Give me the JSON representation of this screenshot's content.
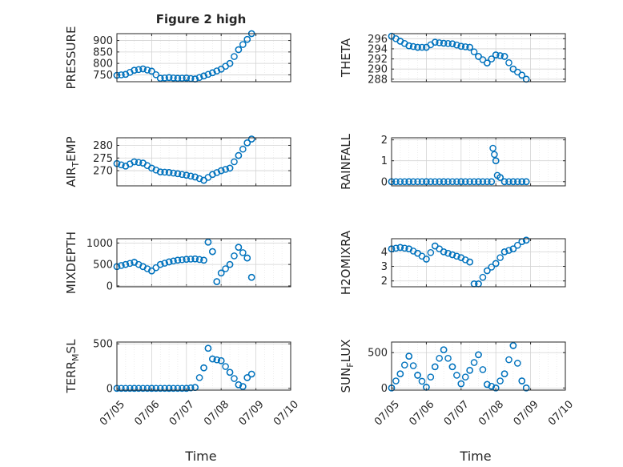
{
  "figure": {
    "title": "Figure 2 high",
    "xlabel": "Time"
  },
  "x_ticks": [
    "07/05",
    "07/06",
    "07/07",
    "07/08",
    "07/09",
    "07/10"
  ],
  "chart_data": [
    {
      "type": "scatter",
      "panel": "PRESSURE",
      "ylabel": "PRESSURE",
      "ylabel_sub": "",
      "ylim": [
        720,
        930
      ],
      "yticks": [
        750,
        800,
        850,
        900
      ],
      "grid": true,
      "title": "Figure 2 high",
      "x": [
        "07/05",
        "07/05 06:00",
        "07/05 12:00",
        "07/05 18:00",
        "07/06",
        "07/06 06:00",
        "07/06 12:00",
        "07/06 18:00",
        "07/07",
        "07/07 06:00",
        "07/07 12:00",
        "07/07 18:00",
        "07/08",
        "07/08 06:00",
        "07/08 12:00",
        "07/08 18:00",
        "07/08 21:00"
      ],
      "values": [
        748,
        752,
        770,
        776,
        766,
        735,
        738,
        735,
        736,
        732,
        745,
        759,
        775,
        800,
        860,
        905,
        930
      ]
    },
    {
      "type": "scatter",
      "panel": "THETA",
      "ylabel": "THETA",
      "ylabel_sub": "",
      "ylim": [
        287.5,
        297
      ],
      "yticks": [
        288,
        290,
        292,
        294,
        296
      ],
      "grid": true,
      "x": [
        "07/05",
        "07/05 06:00",
        "07/05 12:00",
        "07/05 18:00",
        "07/06",
        "07/06 06:00",
        "07/06 12:00",
        "07/06 18:00",
        "07/07",
        "07/07 06:00",
        "07/07 12:00",
        "07/07 18:00",
        "07/08",
        "07/08 06:00",
        "07/08 12:00",
        "07/08 18:00",
        "07/08 21:00"
      ],
      "values": [
        296.5,
        295.5,
        294.6,
        294.3,
        294.3,
        295.3,
        295.1,
        295.0,
        294.5,
        294.3,
        292.5,
        291.2,
        292.8,
        292.5,
        290.0,
        288.8,
        288.0
      ]
    },
    {
      "type": "scatter",
      "panel": "AIR_TEMP",
      "ylabel": "AIR",
      "ylabel_sub": "T",
      "ylabel_rest": "EMP",
      "ylim": [
        264,
        283
      ],
      "yticks": [
        270,
        275,
        280
      ],
      "grid": true,
      "x": [
        "07/05",
        "07/05 06:00",
        "07/05 12:00",
        "07/05 18:00",
        "07/06",
        "07/06 06:00",
        "07/06 12:00",
        "07/06 18:00",
        "07/07",
        "07/07 06:00",
        "07/07 12:00",
        "07/07 18:00",
        "07/08",
        "07/08 06:00",
        "07/08 12:00",
        "07/08 18:00",
        "07/08 21:00"
      ],
      "values": [
        272.8,
        271.8,
        273.5,
        273.0,
        271.0,
        269.5,
        269.3,
        268.8,
        268.2,
        267.5,
        266.2,
        268.5,
        270.0,
        271.0,
        276.0,
        281.0,
        282.5
      ]
    },
    {
      "type": "scatter",
      "panel": "RAINFALL",
      "ylabel": "RAINFALL",
      "ylabel_sub": "",
      "ylim": [
        -0.2,
        2.1
      ],
      "yticks": [
        0,
        1,
        2
      ],
      "grid": true,
      "x": [
        "07/05",
        "07/05 12:00",
        "07/06",
        "07/06 12:00",
        "07/07",
        "07/07 12:00",
        "07/07 21:00",
        "07/07 22:00",
        "07/07 23:00",
        "07/08",
        "07/08 01:00",
        "07/08 03:00",
        "07/08 06:00",
        "07/08 12:00",
        "07/08 18:00",
        "07/08 21:00"
      ],
      "values": [
        0,
        0,
        0,
        0,
        0,
        0,
        0,
        1.6,
        1.3,
        1.0,
        0.3,
        0.2,
        0,
        0,
        0,
        0
      ]
    },
    {
      "type": "scatter",
      "panel": "MIXDEPTH",
      "ylabel": "MIXDEPTH",
      "ylabel_sub": "",
      "ylim": [
        -20,
        1100
      ],
      "yticks": [
        0,
        500,
        1000
      ],
      "grid": true,
      "x": [
        "07/05",
        "07/05 06:00",
        "07/05 12:00",
        "07/05 18:00",
        "07/06",
        "07/06 06:00",
        "07/06 12:00",
        "07/06 18:00",
        "07/07",
        "07/07 06:00",
        "07/07 12:00",
        "07/07 15:00",
        "07/07 18:00",
        "07/07 21:00",
        "07/08",
        "07/08 06:00",
        "07/08 12:00",
        "07/08 18:00",
        "07/08 21:00"
      ],
      "values": [
        450,
        500,
        550,
        450,
        350,
        500,
        560,
        600,
        620,
        630,
        600,
        1020,
        800,
        100,
        300,
        500,
        900,
        650,
        200
      ]
    },
    {
      "type": "scatter",
      "panel": "H2OMIXRA",
      "ylabel": "H2OMIXRA",
      "ylabel_sub": "",
      "ylim": [
        1.6,
        4.9
      ],
      "yticks": [
        2,
        3,
        4
      ],
      "grid": true,
      "x": [
        "07/05",
        "07/05 06:00",
        "07/05 12:00",
        "07/05 18:00",
        "07/06",
        "07/06 06:00",
        "07/06 12:00",
        "07/06 18:00",
        "07/07",
        "07/07 06:00",
        "07/07 09:00",
        "07/07 12:00",
        "07/07 18:00",
        "07/08",
        "07/08 06:00",
        "07/08 12:00",
        "07/08 18:00",
        "07/08 21:00"
      ],
      "values": [
        4.2,
        4.3,
        4.2,
        3.9,
        3.5,
        4.4,
        4.0,
        3.8,
        3.6,
        3.3,
        1.8,
        1.8,
        2.7,
        3.2,
        4.0,
        4.2,
        4.7,
        4.8
      ]
    },
    {
      "type": "scatter",
      "panel": "TERR_MSL",
      "ylabel": "TERR",
      "ylabel_sub": "M",
      "ylabel_rest": "SL",
      "ylim": [
        -20,
        520
      ],
      "yticks": [
        0,
        500
      ],
      "grid": true,
      "x": [
        "07/05",
        "07/05 12:00",
        "07/06",
        "07/06 12:00",
        "07/07",
        "07/07 06:00",
        "07/07 12:00",
        "07/07 15:00",
        "07/07 18:00",
        "07/08",
        "07/08 06:00",
        "07/08 12:00",
        "07/08 15:00",
        "07/08 18:00",
        "07/08 21:00"
      ],
      "values": [
        0,
        0,
        0,
        0,
        0,
        10,
        230,
        450,
        330,
        310,
        180,
        40,
        20,
        120,
        160
      ]
    },
    {
      "type": "scatter",
      "panel": "SUN_FLUX",
      "ylabel": "SUN",
      "ylabel_sub": "F",
      "ylabel_rest": "LUX",
      "ylim": [
        -30,
        650
      ],
      "yticks": [
        0,
        500
      ],
      "grid": true,
      "x": [
        "07/05",
        "07/05 06:00",
        "07/05 12:00",
        "07/05 18:00",
        "07/06",
        "07/06 06:00",
        "07/06 12:00",
        "07/06 18:00",
        "07/07",
        "07/07 06:00",
        "07/07 12:00",
        "07/07 18:00",
        "07/08",
        "07/08 06:00",
        "07/08 12:00",
        "07/08 18:00",
        "07/08 21:00"
      ],
      "values": [
        0,
        200,
        450,
        180,
        10,
        300,
        540,
        300,
        60,
        250,
        470,
        50,
        0,
        200,
        600,
        100,
        0
      ]
    }
  ]
}
